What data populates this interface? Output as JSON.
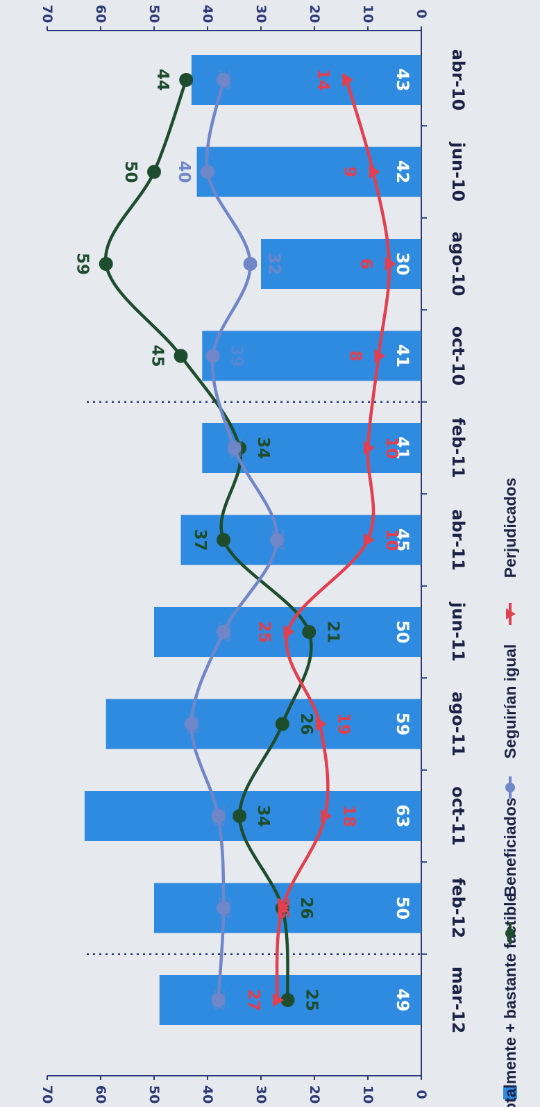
{
  "chart_data": {
    "type": "bar",
    "categories": [
      "abr-10",
      "jun-10",
      "ago-10",
      "oct-10",
      "feb-11",
      "abr-11",
      "jun-11",
      "ago-11",
      "oct-11",
      "feb-12",
      "mar-12"
    ],
    "ylim": [
      0,
      70
    ],
    "y_ticks": [
      0,
      10,
      20,
      30,
      40,
      50,
      60,
      70
    ],
    "orientation": "rotated-90-clockwise",
    "dividers_after_category": [
      "oct-10",
      "feb-12"
    ],
    "series": [
      {
        "name": "Totalmente + bastante factible",
        "kind": "bar",
        "color": "#2f8be0",
        "values": [
          43,
          42,
          30,
          41,
          41,
          45,
          50,
          59,
          63,
          50,
          49
        ]
      },
      {
        "name": "Beneficiados",
        "kind": "line",
        "marker": "circle",
        "color": "#1d4d2c",
        "values": [
          44,
          50,
          59,
          45,
          34,
          37,
          21,
          26,
          34,
          26,
          25
        ]
      },
      {
        "name": "Seguirían igual",
        "kind": "line",
        "marker": "circle",
        "color": "#6f86c8",
        "values": [
          37,
          40,
          32,
          39,
          35,
          27,
          37,
          43,
          38,
          37,
          38
        ]
      },
      {
        "name": "Perjudicados",
        "kind": "line",
        "marker": "triangle",
        "color": "#e0404f",
        "values": [
          14,
          9,
          6,
          8,
          10,
          10,
          25,
          19,
          18,
          26,
          27
        ]
      }
    ],
    "legend": {
      "position": "bottom"
    }
  }
}
